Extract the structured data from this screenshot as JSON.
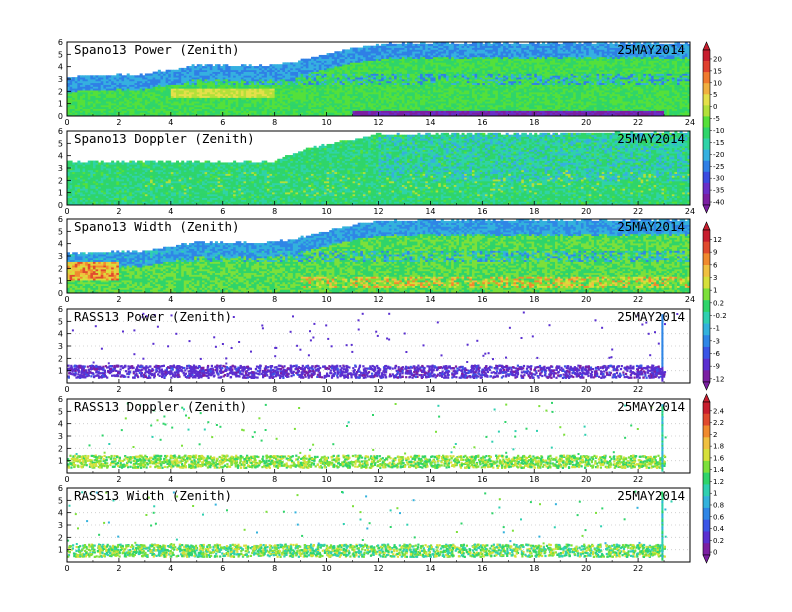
{
  "colors": {
    "power_doppler_scale": [
      "#7b1fa2",
      "#6a2fc8",
      "#3b4be0",
      "#2f7fe6",
      "#35b0e0",
      "#2fd3a8",
      "#2fd56a",
      "#55e03a",
      "#b2e03a",
      "#e4e04a",
      "#f0b040",
      "#f07a2e",
      "#e0402e",
      "#c81e2e"
    ],
    "width_scale": [
      "#7b1fa2",
      "#5a2fd0",
      "#3a55e6",
      "#2f86e6",
      "#33b2dc",
      "#2fd0b0",
      "#2fd46a",
      "#7ce03a",
      "#d6e03a",
      "#f0c040",
      "#f08a2e",
      "#e04a2e",
      "#c81e2e"
    ],
    "rass_scale": [
      "#7b1fa2",
      "#5a2fd0",
      "#3a55e6",
      "#2f86e6",
      "#33b2dc",
      "#2fd0b0",
      "#2fd46a",
      "#7ce03a",
      "#d6e03a",
      "#f0c040",
      "#f08a2e",
      "#e04a2e",
      "#c81e2e"
    ]
  },
  "chart_data": [
    {
      "type": "heatmap",
      "title": "Spano13 Power (Zenith)",
      "date": "25MAY2014",
      "x_ticks": [
        "0",
        "2",
        "4",
        "6",
        "8",
        "10",
        "12",
        "14",
        "16",
        "18",
        "20",
        "22",
        "24"
      ],
      "y_ticks": [
        "0",
        "1",
        "2",
        "3",
        "4",
        "5",
        "6"
      ],
      "xlim": [
        0,
        24
      ],
      "ylim": [
        0,
        6
      ],
      "top_profile": [
        [
          0,
          3.3
        ],
        [
          3,
          3.5
        ],
        [
          5,
          4.2
        ],
        [
          8,
          4.2
        ],
        [
          9,
          4.6
        ],
        [
          11,
          5.6
        ],
        [
          12.5,
          6
        ],
        [
          24,
          6
        ]
      ],
      "features": [
        {
          "label": "enhanced layer",
          "x": [
            4,
            8
          ],
          "y": [
            1.5,
            2.3
          ],
          "level": "high"
        },
        {
          "label": "weak return near ground",
          "x": [
            12,
            23
          ],
          "y": [
            0,
            0.4
          ],
          "level": "low"
        }
      ]
    },
    {
      "type": "heatmap",
      "title": "Spano13 Doppler (Zenith)",
      "date": "25MAY2014",
      "x_ticks": [
        "0",
        "2",
        "4",
        "6",
        "8",
        "10",
        "12",
        "14",
        "16",
        "18",
        "20",
        "22",
        "24"
      ],
      "y_ticks": [
        "0",
        "1",
        "2",
        "3",
        "4",
        "5",
        "6"
      ],
      "xlim": [
        0,
        24
      ],
      "ylim": [
        0,
        6
      ],
      "top_profile": [
        [
          0,
          3.6
        ],
        [
          8,
          3.6
        ],
        [
          9,
          4.5
        ],
        [
          10,
          5.0
        ],
        [
          12,
          5.8
        ],
        [
          24,
          6
        ]
      ]
    },
    {
      "type": "heatmap",
      "title": "Spano13 Width (Zenith)",
      "date": "25MAY2014",
      "x_ticks": [
        "0",
        "2",
        "4",
        "6",
        "8",
        "10",
        "12",
        "14",
        "16",
        "18",
        "20",
        "22",
        "24"
      ],
      "y_ticks": [
        "0",
        "1",
        "2",
        "3",
        "4",
        "5",
        "6"
      ],
      "xlim": [
        0,
        24
      ],
      "ylim": [
        0,
        6
      ],
      "top_profile": [
        [
          0,
          3.3
        ],
        [
          3,
          3.5
        ],
        [
          5,
          4.2
        ],
        [
          8,
          4.2
        ],
        [
          9,
          4.6
        ],
        [
          11,
          5.6
        ],
        [
          12.5,
          6
        ],
        [
          24,
          6
        ]
      ],
      "features": [
        {
          "label": "high width near surface",
          "x": [
            0,
            2
          ],
          "y": [
            1,
            2.5
          ],
          "level": "high"
        },
        {
          "label": "high width band",
          "x": [
            9,
            22
          ],
          "y": [
            0.6,
            1.4
          ],
          "level": "high"
        }
      ]
    },
    {
      "type": "scatter",
      "title": "RASS13 Power (Zenith)",
      "date": "25MAY2014",
      "x_ticks": [
        "0",
        "2",
        "4",
        "6",
        "8",
        "10",
        "12",
        "14",
        "16",
        "18",
        "20",
        "22"
      ],
      "y_ticks": [
        "1",
        "2",
        "3",
        "4",
        "5",
        "6"
      ],
      "xlim": [
        0,
        24
      ],
      "ylim": [
        0,
        6
      ],
      "spike_x": 22.9,
      "band": [
        0.5,
        1.5
      ]
    },
    {
      "type": "scatter",
      "title": "RASS13 Doppler (Zenith)",
      "date": "25MAY2014",
      "x_ticks": [
        "0",
        "2",
        "4",
        "6",
        "8",
        "10",
        "12",
        "14",
        "16",
        "18",
        "20",
        "22"
      ],
      "y_ticks": [
        "1",
        "2",
        "3",
        "4",
        "5",
        "6"
      ],
      "xlim": [
        0,
        24
      ],
      "ylim": [
        0,
        6
      ],
      "spike_x": 22.9,
      "band": [
        0.5,
        1.5
      ]
    },
    {
      "type": "scatter",
      "title": "RASS13 Width (Zenith)",
      "date": "25MAY2014",
      "x_ticks": [
        "0",
        "2",
        "4",
        "6",
        "8",
        "10",
        "12",
        "14",
        "16",
        "18",
        "20",
        "22"
      ],
      "y_ticks": [
        "1",
        "2",
        "3",
        "4",
        "5",
        "6"
      ],
      "xlim": [
        0,
        24
      ],
      "ylim": [
        0,
        6
      ],
      "spike_x": 22.9,
      "band": [
        0.5,
        1.5
      ]
    }
  ],
  "colorbars": [
    {
      "labels": [
        "20",
        "15",
        "10",
        "5",
        "0",
        "-5",
        "-10",
        "-15",
        "-20",
        "-25",
        "-30",
        "-35",
        "-40"
      ]
    },
    {
      "labels": [
        "12",
        "9",
        "6",
        "3",
        "1",
        "0.2",
        "-0.2",
        "-1",
        "-3",
        "-6",
        "-9",
        "-12"
      ]
    },
    {
      "labels": [
        "2.4",
        "2.2",
        "2",
        "1.8",
        "1.6",
        "1.4",
        "1.2",
        "1",
        "0.8",
        "0.6",
        "0.4",
        "0.2",
        "0"
      ]
    }
  ]
}
